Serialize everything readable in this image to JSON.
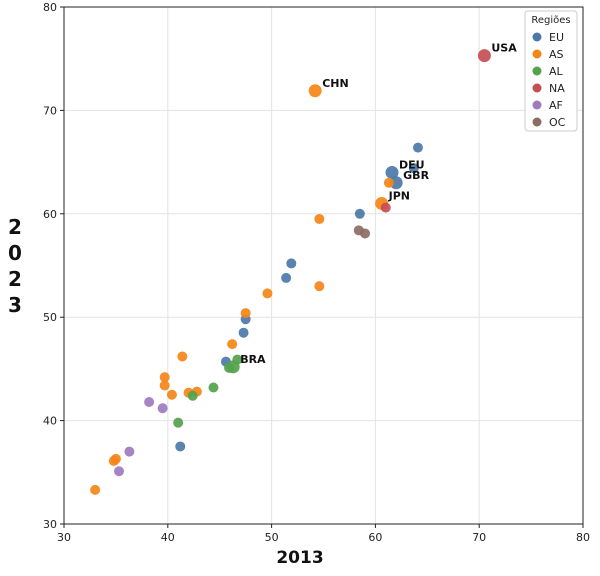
{
  "chart_data": {
    "type": "scatter",
    "xlabel": "2013",
    "ylabel": "2023",
    "xlim": [
      30,
      80
    ],
    "ylim": [
      30,
      80
    ],
    "xticks": [
      "30",
      "40",
      "50",
      "60",
      "70",
      "80"
    ],
    "yticks": [
      "30",
      "40",
      "50",
      "60",
      "70",
      "80"
    ],
    "grid": true,
    "legend": {
      "title": "Regiões",
      "placement": "top-right",
      "entries": [
        "EU",
        "AS",
        "AL",
        "NA",
        "AF",
        "OC"
      ]
    },
    "colors": {
      "EU": "#4c78a8",
      "AS": "#f58518",
      "AL": "#54a24b",
      "NA": "#c44e52",
      "AF": "#9d7bbd",
      "OC": "#8c6d62"
    },
    "series": [
      {
        "name": "EU",
        "points": [
          {
            "x": 64.1,
            "y": 66.4
          },
          {
            "x": 61.6,
            "y": 64.0
          },
          {
            "x": 63.7,
            "y": 64.4
          },
          {
            "x": 62.0,
            "y": 63.0
          },
          {
            "x": 58.5,
            "y": 60.0
          },
          {
            "x": 51.9,
            "y": 55.2
          },
          {
            "x": 51.4,
            "y": 53.8
          },
          {
            "x": 47.5,
            "y": 49.8
          },
          {
            "x": 47.3,
            "y": 48.5
          },
          {
            "x": 45.6,
            "y": 45.7
          },
          {
            "x": 41.2,
            "y": 37.5
          }
        ]
      },
      {
        "name": "AS",
        "points": [
          {
            "x": 54.2,
            "y": 71.9
          },
          {
            "x": 60.6,
            "y": 61.0
          },
          {
            "x": 61.3,
            "y": 63.0
          },
          {
            "x": 54.6,
            "y": 59.5
          },
          {
            "x": 54.6,
            "y": 53.0
          },
          {
            "x": 49.6,
            "y": 52.3
          },
          {
            "x": 47.5,
            "y": 50.4
          },
          {
            "x": 46.2,
            "y": 47.4
          },
          {
            "x": 41.4,
            "y": 46.2
          },
          {
            "x": 39.7,
            "y": 44.2
          },
          {
            "x": 39.7,
            "y": 43.4
          },
          {
            "x": 40.4,
            "y": 42.5
          },
          {
            "x": 42.0,
            "y": 42.7
          },
          {
            "x": 42.8,
            "y": 42.8
          },
          {
            "x": 34.8,
            "y": 36.1
          },
          {
            "x": 35.0,
            "y": 36.3
          },
          {
            "x": 33.0,
            "y": 33.3
          }
        ]
      },
      {
        "name": "AL",
        "points": [
          {
            "x": 46.3,
            "y": 45.2
          },
          {
            "x": 46.7,
            "y": 45.9
          },
          {
            "x": 45.9,
            "y": 45.1
          },
          {
            "x": 44.4,
            "y": 43.2
          },
          {
            "x": 42.4,
            "y": 42.4
          },
          {
            "x": 41.0,
            "y": 39.8
          }
        ]
      },
      {
        "name": "NA",
        "points": [
          {
            "x": 70.5,
            "y": 75.3
          },
          {
            "x": 61.0,
            "y": 60.6
          }
        ]
      },
      {
        "name": "AF",
        "points": [
          {
            "x": 38.2,
            "y": 41.8
          },
          {
            "x": 39.5,
            "y": 41.2
          },
          {
            "x": 36.3,
            "y": 37.0
          },
          {
            "x": 35.3,
            "y": 35.1
          }
        ]
      },
      {
        "name": "OC",
        "points": [
          {
            "x": 58.4,
            "y": 58.4
          },
          {
            "x": 59.0,
            "y": 58.1
          }
        ]
      }
    ],
    "highlighted": [
      {
        "label": "USA",
        "x": 70.5,
        "y": 75.3,
        "region": "NA"
      },
      {
        "label": "CHN",
        "x": 54.2,
        "y": 71.9,
        "region": "AS"
      },
      {
        "label": "DEU",
        "x": 61.6,
        "y": 64.0,
        "region": "EU"
      },
      {
        "label": "GBR",
        "x": 62.0,
        "y": 63.0,
        "region": "EU"
      },
      {
        "label": "JPN",
        "x": 60.6,
        "y": 61.0,
        "region": "AS"
      },
      {
        "label": "BRA",
        "x": 46.3,
        "y": 45.2,
        "region": "AL"
      }
    ]
  }
}
